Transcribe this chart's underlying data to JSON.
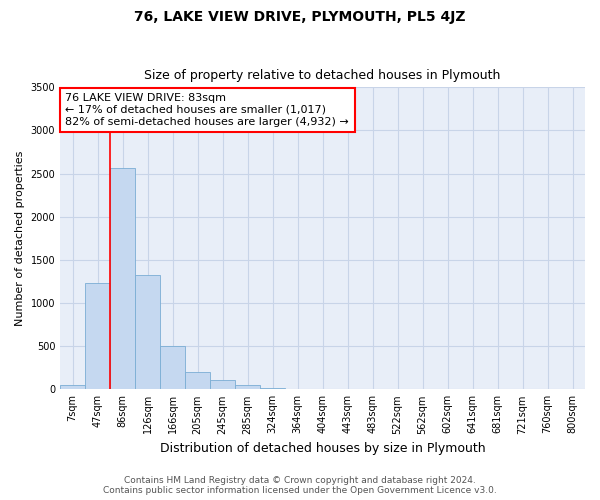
{
  "title": "76, LAKE VIEW DRIVE, PLYMOUTH, PL5 4JZ",
  "subtitle": "Size of property relative to detached houses in Plymouth",
  "xlabel": "Distribution of detached houses by size in Plymouth",
  "ylabel": "Number of detached properties",
  "bar_labels": [
    "7sqm",
    "47sqm",
    "86sqm",
    "126sqm",
    "166sqm",
    "205sqm",
    "245sqm",
    "285sqm",
    "324sqm",
    "364sqm",
    "404sqm",
    "443sqm",
    "483sqm",
    "522sqm",
    "562sqm",
    "602sqm",
    "641sqm",
    "681sqm",
    "721sqm",
    "760sqm",
    "800sqm"
  ],
  "bar_values": [
    50,
    1230,
    2570,
    1330,
    500,
    200,
    110,
    50,
    20,
    0,
    0,
    0,
    0,
    0,
    0,
    0,
    0,
    0,
    0,
    0,
    0
  ],
  "bar_color": "#c5d8f0",
  "bar_edge_color": "#7aadd4",
  "annotation_text": "76 LAKE VIEW DRIVE: 83sqm\n← 17% of detached houses are smaller (1,017)\n82% of semi-detached houses are larger (4,932) →",
  "annotation_box_color": "white",
  "annotation_box_edge_color": "red",
  "red_line_index": 2,
  "ylim": [
    0,
    3500
  ],
  "yticks": [
    0,
    500,
    1000,
    1500,
    2000,
    2500,
    3000,
    3500
  ],
  "grid_color": "#c8d4e8",
  "background_color": "#e8eef8",
  "footer_line1": "Contains HM Land Registry data © Crown copyright and database right 2024.",
  "footer_line2": "Contains public sector information licensed under the Open Government Licence v3.0.",
  "title_fontsize": 10,
  "subtitle_fontsize": 9,
  "xlabel_fontsize": 9,
  "ylabel_fontsize": 8,
  "tick_fontsize": 7,
  "annotation_fontsize": 8,
  "footer_fontsize": 6.5
}
